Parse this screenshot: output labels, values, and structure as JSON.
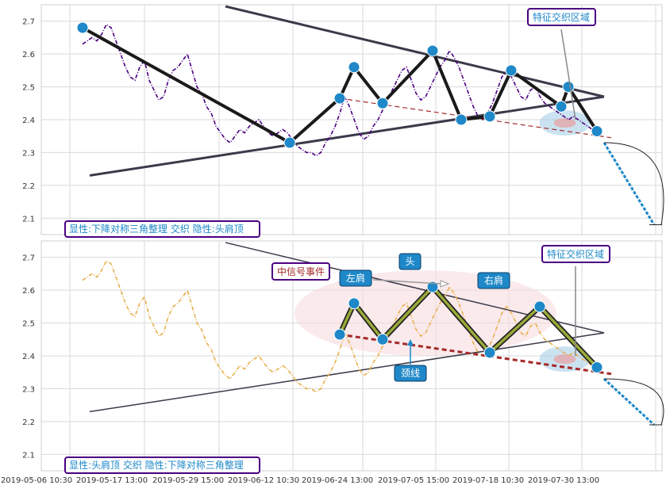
{
  "chart_data": [
    {
      "type": "line",
      "panel": "top",
      "ylim": [
        2.05,
        2.75
      ],
      "yticks": [
        2.1,
        2.2,
        2.3,
        2.4,
        2.5,
        2.6,
        2.7
      ],
      "ytick_labels": [
        "2.1",
        "2.2",
        "2.3",
        "2.4",
        "2.5",
        "2.6",
        "2.7"
      ],
      "price_color": "#4b0082",
      "price": [
        2.63,
        2.64,
        2.65,
        2.64,
        2.66,
        2.69,
        2.68,
        2.64,
        2.6,
        2.56,
        2.53,
        2.52,
        2.56,
        2.58,
        2.52,
        2.49,
        2.46,
        2.47,
        2.52,
        2.55,
        2.56,
        2.58,
        2.6,
        2.55,
        2.5,
        2.48,
        2.44,
        2.42,
        2.38,
        2.36,
        2.34,
        2.33,
        2.35,
        2.37,
        2.36,
        2.38,
        2.39,
        2.4,
        2.38,
        2.36,
        2.35,
        2.36,
        2.37,
        2.36,
        2.34,
        2.32,
        2.31,
        2.3,
        2.3,
        2.29,
        2.3,
        2.33,
        2.35,
        2.38,
        2.42,
        2.47,
        2.44,
        2.4,
        2.36,
        2.34,
        2.35,
        2.38,
        2.4,
        2.43,
        2.46,
        2.49,
        2.52,
        2.55,
        2.56,
        2.52,
        2.48,
        2.46,
        2.47,
        2.5,
        2.53,
        2.56,
        2.58,
        2.61,
        2.59,
        2.56,
        2.52,
        2.48,
        2.44,
        2.41,
        2.4,
        2.42,
        2.45,
        2.49,
        2.53,
        2.55,
        2.53,
        2.5,
        2.47,
        2.46,
        2.49,
        2.5,
        2.47,
        2.45,
        2.44,
        2.43,
        2.42,
        2.41,
        2.4,
        2.41,
        2.4,
        2.39,
        2.38,
        2.37,
        2.36,
        2.35
      ],
      "markers": [
        [
          0,
          2.68
        ],
        [
          29,
          2.33
        ],
        [
          36,
          2.465
        ],
        [
          38,
          2.56
        ],
        [
          42,
          2.45
        ],
        [
          49,
          2.61
        ],
        [
          53,
          2.4
        ],
        [
          57,
          2.41
        ],
        [
          60,
          2.55
        ],
        [
          67,
          2.44
        ],
        [
          68,
          2.5
        ],
        [
          72,
          2.365
        ]
      ],
      "pattern_path": [
        [
          0,
          2.68
        ],
        [
          29,
          2.33
        ],
        [
          36,
          2.465
        ],
        [
          38,
          2.56
        ],
        [
          42,
          2.45
        ],
        [
          49,
          2.61
        ],
        [
          53,
          2.4
        ],
        [
          57,
          2.41
        ],
        [
          60,
          2.55
        ],
        [
          67,
          2.44
        ],
        [
          68,
          2.5
        ],
        [
          72,
          2.365
        ]
      ],
      "triangle_upper": [
        [
          20,
          2.745
        ],
        [
          73,
          2.47
        ]
      ],
      "triangle_lower": [
        [
          1,
          2.23
        ],
        [
          73,
          2.47
        ]
      ],
      "neckline": [
        [
          36,
          2.465
        ],
        [
          72,
          2.355
        ]
      ],
      "projection": [
        [
          73,
          2.33
        ],
        [
          80,
          2.08
        ]
      ],
      "feature_zone_label": "特征交织区域",
      "footer_label": "显性:下降对称三角整理 交织 隐性:头肩顶"
    },
    {
      "type": "line",
      "panel": "bottom",
      "ylim": [
        2.05,
        2.75
      ],
      "yticks": [
        2.1,
        2.2,
        2.3,
        2.4,
        2.5,
        2.6,
        2.7
      ],
      "ytick_labels": [
        "2.1",
        "2.2",
        "2.3",
        "2.4",
        "2.5",
        "2.6",
        "2.7"
      ],
      "price_color": "#e8b04b",
      "markers": [
        [
          36,
          2.465
        ],
        [
          38,
          2.56
        ],
        [
          42,
          2.45
        ],
        [
          49,
          2.61
        ],
        [
          57,
          2.41
        ],
        [
          64,
          2.55
        ],
        [
          72,
          2.365
        ]
      ],
      "pattern_path": [
        [
          36,
          2.465
        ],
        [
          38,
          2.56
        ],
        [
          42,
          2.45
        ],
        [
          49,
          2.61
        ],
        [
          57,
          2.41
        ],
        [
          64,
          2.55
        ],
        [
          72,
          2.365
        ]
      ],
      "triangle_upper": [
        [
          20,
          2.745
        ],
        [
          73,
          2.47
        ]
      ],
      "triangle_lower": [
        [
          1,
          2.23
        ],
        [
          73,
          2.47
        ]
      ],
      "neckline": [
        [
          36,
          2.465
        ],
        [
          72,
          2.355
        ]
      ],
      "projection": [
        [
          73,
          2.33
        ],
        [
          80,
          2.19
        ]
      ],
      "labels": {
        "mid_signal": "中信号事件",
        "left_shoulder": "左肩",
        "head": "头",
        "right_shoulder": "右肩",
        "neckline": "颈线",
        "feature_zone": "特征交织区域"
      },
      "footer_label": "显性:头肩顶 交织 隐性:下降对称三角整理",
      "x_tick_labels": [
        "2019-05-06 10:30",
        "2019-05-17 13:00",
        "2019-05-29 15:00",
        "2019-06-12 10:30",
        "2019-06-24 13:00",
        "2019-07-05 15:00",
        "2019-07-18 10:30",
        "2019-07-30 13:00"
      ]
    }
  ],
  "colors": {
    "box_border": "#4b0082",
    "box_text": "#1e88c8",
    "marker": "#1e88c8",
    "neckline": "#a52a2a",
    "shoulder_box_fill": "#1e88c8"
  }
}
